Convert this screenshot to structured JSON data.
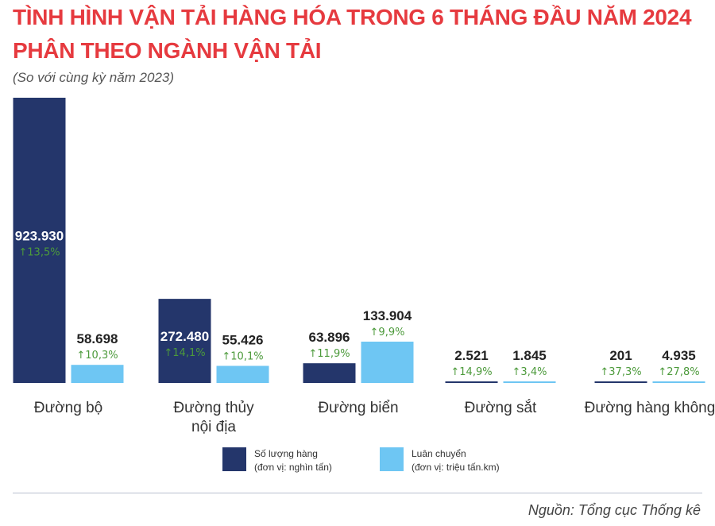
{
  "header": {
    "title_line1": "TÌNH HÌNH VẬN TẢI HÀNG HÓA TRONG 6 THÁNG ĐẦU NĂM 2024",
    "title_line2": "PHÂN THEO NGÀNH VẬN TẢI",
    "subtitle": "(So với cùng kỳ năm 2023)"
  },
  "colors": {
    "title": "#e63a3f",
    "volume": "#24366b",
    "turnover": "#6ec6f3",
    "growth_label": "#4c9a3b",
    "label_dark": "#222222"
  },
  "chart_data": {
    "type": "bar",
    "categories": [
      "Đường bộ",
      "Đường thủy\nnội địa",
      "Đường biển",
      "Đường sắt",
      "Đường hàng không"
    ],
    "series": [
      {
        "name": "Số lượng hàng",
        "unit": "(đơn vị: nghìn tấn)",
        "values": [
          923930,
          272480,
          63896,
          2521,
          201
        ],
        "labels": [
          "923.930",
          "272.480",
          "63.896",
          "2.521",
          "201"
        ],
        "growth": [
          "13,5%",
          "14,1%",
          "11,9%",
          "14,9%",
          "37,3%"
        ]
      },
      {
        "name": "Luân chuyển",
        "unit": "(đơn vị: triệu tấn.km)",
        "values": [
          58698,
          55426,
          133904,
          1845,
          4935
        ],
        "labels": [
          "58.698",
          "55.426",
          "133.904",
          "1.845",
          "4.935"
        ],
        "growth": [
          "10,3%",
          "10,1%",
          "9,9%",
          "3,4%",
          "27,8%"
        ]
      }
    ],
    "growth_direction": "up"
  },
  "legend": {
    "volume_name": "Số lượng hàng",
    "volume_unit": "(đơn vị: nghìn tấn)",
    "turnover_name": "Luân chuyển",
    "turnover_unit": "(đơn vị: triệu tấn.km)"
  },
  "footer": {
    "source": "Nguồn: Tổng cục Thống kê"
  }
}
